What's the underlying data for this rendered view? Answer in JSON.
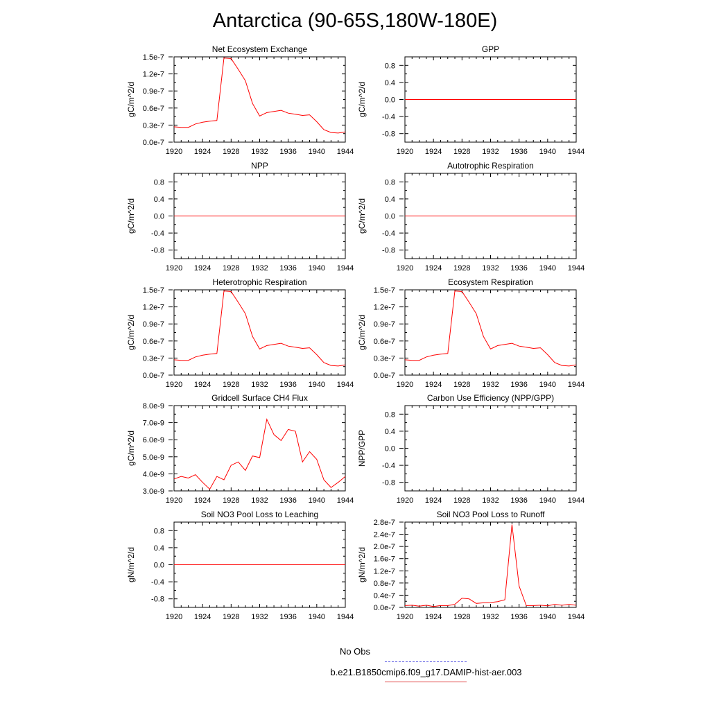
{
  "page": {
    "title": "Antarctica (90-65S,180W-180E)"
  },
  "legend": {
    "entries": [
      {
        "label": "No Obs",
        "color": "#4a4ae0",
        "style": "dashed"
      },
      {
        "label": "b.e21.B1850cmip6.f09_g17.DAMIP-hist-aer.003",
        "color": "#e04040",
        "style": "solid"
      }
    ]
  },
  "chart_data": [
    {
      "type": "line",
      "title": "Net Ecosystem Exchange",
      "ylabel": "gC/m^2/d",
      "xlim": [
        1920,
        1944
      ],
      "ylim": [
        0,
        1.5e-07
      ],
      "xticks": [
        1920,
        1924,
        1928,
        1932,
        1936,
        1940,
        1944
      ],
      "yticks": [
        0,
        3e-08,
        6e-08,
        9e-08,
        1.2e-07,
        1.5e-07
      ],
      "yticklabels": [
        "0.0e-7",
        "0.3e-7",
        "0.6e-7",
        "0.9e-7",
        "1.2e-7",
        "1.5e-7"
      ],
      "series": [
        {
          "color": "#ff0000",
          "x": [
            1920,
            1921,
            1922,
            1923,
            1924,
            1925,
            1926,
            1927,
            1928,
            1929,
            1930,
            1931,
            1932,
            1933,
            1934,
            1935,
            1936,
            1937,
            1938,
            1939,
            1940,
            1941,
            1942,
            1943,
            1944
          ],
          "y": [
            2.7e-08,
            2.6e-08,
            2.6e-08,
            3.2e-08,
            3.5e-08,
            3.7e-08,
            3.8e-08,
            1.48e-07,
            1.47e-07,
            1.28e-07,
            1.08e-07,
            6.8e-08,
            4.6e-08,
            5.2e-08,
            5.4e-08,
            5.6e-08,
            5.1e-08,
            4.9e-08,
            4.7e-08,
            4.8e-08,
            3.6e-08,
            2.2e-08,
            1.7e-08,
            1.6e-08,
            1.8e-08
          ]
        }
      ]
    },
    {
      "type": "line",
      "title": "GPP",
      "ylabel": "gC/m^2/d",
      "xlim": [
        1920,
        1944
      ],
      "ylim": [
        -1,
        1
      ],
      "xticks": [
        1920,
        1924,
        1928,
        1932,
        1936,
        1940,
        1944
      ],
      "yticks": [
        -0.8,
        -0.4,
        0,
        0.4,
        0.8
      ],
      "yticklabels": [
        "-0.8",
        "-0.4",
        "0.0",
        "0.4",
        "0.8"
      ],
      "series": [
        {
          "color": "#ff0000",
          "x": [
            1920,
            1944
          ],
          "y": [
            0,
            0
          ]
        }
      ]
    },
    {
      "type": "line",
      "title": "NPP",
      "ylabel": "gC/m^2/d",
      "xlim": [
        1920,
        1944
      ],
      "ylim": [
        -1,
        1
      ],
      "xticks": [
        1920,
        1924,
        1928,
        1932,
        1936,
        1940,
        1944
      ],
      "yticks": [
        -0.8,
        -0.4,
        0,
        0.4,
        0.8
      ],
      "yticklabels": [
        "-0.8",
        "-0.4",
        "0.0",
        "0.4",
        "0.8"
      ],
      "series": [
        {
          "color": "#ff0000",
          "x": [
            1920,
            1944
          ],
          "y": [
            0,
            0
          ]
        }
      ]
    },
    {
      "type": "line",
      "title": "Autotrophic Respiration",
      "ylabel": "gC/m^2/d",
      "xlim": [
        1920,
        1944
      ],
      "ylim": [
        -1,
        1
      ],
      "xticks": [
        1920,
        1924,
        1928,
        1932,
        1936,
        1940,
        1944
      ],
      "yticks": [
        -0.8,
        -0.4,
        0,
        0.4,
        0.8
      ],
      "yticklabels": [
        "-0.8",
        "-0.4",
        "0.0",
        "0.4",
        "0.8"
      ],
      "series": [
        {
          "color": "#ff0000",
          "x": [
            1920,
            1944
          ],
          "y": [
            0,
            0
          ]
        }
      ]
    },
    {
      "type": "line",
      "title": "Heterotrophic Respiration",
      "ylabel": "gC/m^2/d",
      "xlim": [
        1920,
        1944
      ],
      "ylim": [
        0,
        1.5e-07
      ],
      "xticks": [
        1920,
        1924,
        1928,
        1932,
        1936,
        1940,
        1944
      ],
      "yticks": [
        0,
        3e-08,
        6e-08,
        9e-08,
        1.2e-07,
        1.5e-07
      ],
      "yticklabels": [
        "0.0e-7",
        "0.3e-7",
        "0.6e-7",
        "0.9e-7",
        "1.2e-7",
        "1.5e-7"
      ],
      "series": [
        {
          "color": "#ff0000",
          "x": [
            1920,
            1921,
            1922,
            1923,
            1924,
            1925,
            1926,
            1927,
            1928,
            1929,
            1930,
            1931,
            1932,
            1933,
            1934,
            1935,
            1936,
            1937,
            1938,
            1939,
            1940,
            1941,
            1942,
            1943,
            1944
          ],
          "y": [
            2.7e-08,
            2.6e-08,
            2.6e-08,
            3.2e-08,
            3.5e-08,
            3.7e-08,
            3.8e-08,
            1.48e-07,
            1.47e-07,
            1.28e-07,
            1.08e-07,
            6.8e-08,
            4.6e-08,
            5.2e-08,
            5.4e-08,
            5.6e-08,
            5.1e-08,
            4.9e-08,
            4.7e-08,
            4.8e-08,
            3.6e-08,
            2.2e-08,
            1.7e-08,
            1.6e-08,
            1.8e-08
          ]
        }
      ]
    },
    {
      "type": "line",
      "title": "Ecosystem Respiration",
      "ylabel": "gC/m^2/d",
      "xlim": [
        1920,
        1944
      ],
      "ylim": [
        0,
        1.5e-07
      ],
      "xticks": [
        1920,
        1924,
        1928,
        1932,
        1936,
        1940,
        1944
      ],
      "yticks": [
        0,
        3e-08,
        6e-08,
        9e-08,
        1.2e-07,
        1.5e-07
      ],
      "yticklabels": [
        "0.0e-7",
        "0.3e-7",
        "0.6e-7",
        "0.9e-7",
        "1.2e-7",
        "1.5e-7"
      ],
      "series": [
        {
          "color": "#ff0000",
          "x": [
            1920,
            1921,
            1922,
            1923,
            1924,
            1925,
            1926,
            1927,
            1928,
            1929,
            1930,
            1931,
            1932,
            1933,
            1934,
            1935,
            1936,
            1937,
            1938,
            1939,
            1940,
            1941,
            1942,
            1943,
            1944
          ],
          "y": [
            2.7e-08,
            2.6e-08,
            2.6e-08,
            3.2e-08,
            3.5e-08,
            3.7e-08,
            3.8e-08,
            1.48e-07,
            1.47e-07,
            1.28e-07,
            1.08e-07,
            6.8e-08,
            4.6e-08,
            5.2e-08,
            5.4e-08,
            5.6e-08,
            5.1e-08,
            4.9e-08,
            4.7e-08,
            4.8e-08,
            3.6e-08,
            2.2e-08,
            1.7e-08,
            1.6e-08,
            1.8e-08
          ]
        }
      ]
    },
    {
      "type": "line",
      "title": "Gridcell Surface CH4 Flux",
      "ylabel": "gC/m^2/d",
      "xlim": [
        1920,
        1944
      ],
      "ylim": [
        3e-09,
        8e-09
      ],
      "xticks": [
        1920,
        1924,
        1928,
        1932,
        1936,
        1940,
        1944
      ],
      "yticks": [
        3e-09,
        4e-09,
        5e-09,
        6e-09,
        7e-09,
        8e-09
      ],
      "yticklabels": [
        "3.0e-9",
        "4.0e-9",
        "5.0e-9",
        "6.0e-9",
        "7.0e-9",
        "8.0e-9"
      ],
      "series": [
        {
          "color": "#ff0000",
          "x": [
            1920,
            1921,
            1922,
            1923,
            1924,
            1925,
            1926,
            1927,
            1928,
            1929,
            1930,
            1931,
            1932,
            1933,
            1934,
            1935,
            1936,
            1937,
            1938,
            1939,
            1940,
            1941,
            1942,
            1943,
            1944
          ],
          "y": [
            3.7e-09,
            3.85e-09,
            3.75e-09,
            3.95e-09,
            3.5e-09,
            3.1e-09,
            3.85e-09,
            3.65e-09,
            4.5e-09,
            4.7e-09,
            4.2e-09,
            5.05e-09,
            4.95e-09,
            7.2e-09,
            6.3e-09,
            5.95e-09,
            6.6e-09,
            6.5e-09,
            4.7e-09,
            5.3e-09,
            4.85e-09,
            3.65e-09,
            3.2e-09,
            3.5e-09,
            3.85e-09
          ]
        }
      ]
    },
    {
      "type": "line",
      "title": "Carbon Use Efficiency (NPP/GPP)",
      "ylabel": "NPP/GPP",
      "xlim": [
        1920,
        1944
      ],
      "ylim": [
        -1,
        1
      ],
      "xticks": [
        1920,
        1924,
        1928,
        1932,
        1936,
        1940,
        1944
      ],
      "yticks": [
        -0.8,
        -0.4,
        0,
        0.4,
        0.8
      ],
      "yticklabels": [
        "-0.8",
        "-0.4",
        "0.0",
        "0.4",
        "0.8"
      ],
      "series": []
    },
    {
      "type": "line",
      "title": "Soil NO3 Pool Loss to Leaching",
      "ylabel": "gN/m^2/d",
      "xlim": [
        1920,
        1944
      ],
      "ylim": [
        -1,
        1
      ],
      "xticks": [
        1920,
        1924,
        1928,
        1932,
        1936,
        1940,
        1944
      ],
      "yticks": [
        -0.8,
        -0.4,
        0,
        0.4,
        0.8
      ],
      "yticklabels": [
        "-0.8",
        "-0.4",
        "0.0",
        "0.4",
        "0.8"
      ],
      "series": [
        {
          "color": "#ff0000",
          "x": [
            1920,
            1944
          ],
          "y": [
            0,
            0
          ]
        }
      ]
    },
    {
      "type": "line",
      "title": "Soil NO3 Pool Loss to Runoff",
      "ylabel": "gN/m^2/d",
      "xlim": [
        1920,
        1944
      ],
      "ylim": [
        0,
        2.8e-07
      ],
      "xticks": [
        1920,
        1924,
        1928,
        1932,
        1936,
        1940,
        1944
      ],
      "yticks": [
        0,
        4e-08,
        8e-08,
        1.2e-07,
        1.6e-07,
        2e-07,
        2.4e-07,
        2.8e-07
      ],
      "yticklabels": [
        "0.0e-7",
        "0.4e-7",
        "0.8e-7",
        "1.2e-7",
        "1.6e-7",
        "2.0e-7",
        "2.4e-7",
        "2.8e-7"
      ],
      "series": [
        {
          "color": "#ff0000",
          "x": [
            1920,
            1921,
            1922,
            1923,
            1924,
            1925,
            1926,
            1927,
            1928,
            1929,
            1930,
            1931,
            1932,
            1933,
            1934,
            1935,
            1936,
            1937,
            1938,
            1939,
            1940,
            1941,
            1942,
            1943,
            1944
          ],
          "y": [
            6e-09,
            7e-09,
            4e-09,
            7e-09,
            3e-09,
            6e-09,
            6e-09,
            1e-08,
            3e-08,
            2.8e-08,
            1.3e-08,
            1.5e-08,
            1.6e-08,
            1.9e-08,
            2.5e-08,
            2.72e-07,
            7e-08,
            6e-09,
            6e-09,
            7e-09,
            5e-09,
            1e-08,
            7e-09,
            1e-08,
            7e-09
          ]
        }
      ]
    }
  ]
}
